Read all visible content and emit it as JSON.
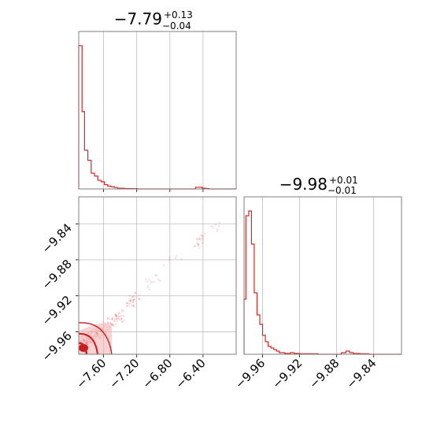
{
  "chart_data": [
    {
      "type": "histogram",
      "panel": "marginal-param-1",
      "title_value": "−7.79",
      "title_plus": "+0.13",
      "title_minus": "−0.04",
      "xlim": [
        -7.9,
        -6.0
      ],
      "x_ticks": [
        -7.6,
        -7.2,
        -6.8,
        -6.4
      ],
      "grid": true,
      "color": "#d62728",
      "bins": [
        {
          "x": -7.9,
          "y": 100
        },
        {
          "x": -7.86,
          "y": 54
        },
        {
          "x": -7.83,
          "y": 27
        },
        {
          "x": -7.79,
          "y": 20
        },
        {
          "x": -7.75,
          "y": 11
        },
        {
          "x": -7.71,
          "y": 9
        },
        {
          "x": -7.67,
          "y": 6
        },
        {
          "x": -7.63,
          "y": 5
        },
        {
          "x": -7.59,
          "y": 3
        },
        {
          "x": -7.55,
          "y": 2
        },
        {
          "x": -7.51,
          "y": 1.5
        },
        {
          "x": -7.47,
          "y": 1
        },
        {
          "x": -7.43,
          "y": 0.5
        },
        {
          "x": -7.39,
          "y": 0.5
        },
        {
          "x": -7.35,
          "y": 0.3
        },
        {
          "x": -7.31,
          "y": 0.3
        },
        {
          "x": -7.27,
          "y": 0.2
        },
        {
          "x": -7.23,
          "y": 0.2
        },
        {
          "x": -7.19,
          "y": 0
        },
        {
          "x": -6.49,
          "y": 1.2
        },
        {
          "x": -6.45,
          "y": 1.2
        },
        {
          "x": -6.41,
          "y": 0.5
        },
        {
          "x": -6.37,
          "y": 0.3
        },
        {
          "x": -6.33,
          "y": 0
        },
        {
          "x": -6.0,
          "y": 0
        }
      ]
    },
    {
      "type": "histogram",
      "panel": "marginal-param-2",
      "title_value": "−9.98",
      "title_plus": "+0.01",
      "title_minus": "−0.01",
      "xlim": [
        -9.98,
        -9.81
      ],
      "x_ticks": [
        -9.96,
        -9.92,
        -9.88,
        -9.84
      ],
      "grid": true,
      "color": "#d62728",
      "bins": [
        {
          "x": -9.98,
          "y": 35
        },
        {
          "x": -9.978,
          "y": 88
        },
        {
          "x": -9.975,
          "y": 91
        },
        {
          "x": -9.972,
          "y": 70
        },
        {
          "x": -9.969,
          "y": 39
        },
        {
          "x": -9.966,
          "y": 25
        },
        {
          "x": -9.963,
          "y": 19
        },
        {
          "x": -9.96,
          "y": 12
        },
        {
          "x": -9.957,
          "y": 8
        },
        {
          "x": -9.954,
          "y": 5
        },
        {
          "x": -9.951,
          "y": 4
        },
        {
          "x": -9.948,
          "y": 3
        },
        {
          "x": -9.945,
          "y": 2
        },
        {
          "x": -9.942,
          "y": 1
        },
        {
          "x": -9.939,
          "y": 1
        },
        {
          "x": -9.936,
          "y": 0.5
        },
        {
          "x": -9.93,
          "y": 1
        },
        {
          "x": -9.926,
          "y": 0.5
        },
        {
          "x": -9.92,
          "y": 0.3
        },
        {
          "x": -9.91,
          "y": 0.3
        },
        {
          "x": -9.9,
          "y": 0
        },
        {
          "x": -9.875,
          "y": 1
        },
        {
          "x": -9.87,
          "y": 2
        },
        {
          "x": -9.866,
          "y": 1
        },
        {
          "x": -9.862,
          "y": 0.5
        },
        {
          "x": -9.855,
          "y": 0.3
        },
        {
          "x": -9.845,
          "y": 0
        },
        {
          "x": -9.81,
          "y": 0
        }
      ]
    },
    {
      "type": "scatter",
      "panel": "joint-param-1-vs-param-2",
      "xlim": [
        -7.9,
        -6.0
      ],
      "ylim": [
        -9.985,
        -9.81
      ],
      "x_ticks": [
        -7.6,
        -7.2,
        -6.8,
        -6.4
      ],
      "y_ticks": [
        -9.84,
        -9.88,
        -9.92,
        -9.96
      ],
      "grid": true,
      "color": "#d62728",
      "contour_levels": 3,
      "clusters": [
        {
          "x": -7.82,
          "y": -9.972,
          "n": 160
        },
        {
          "x": -7.65,
          "y": -9.96,
          "n": 70
        },
        {
          "x": -7.45,
          "y": -9.945,
          "n": 50
        },
        {
          "x": -7.25,
          "y": -9.925,
          "n": 35
        },
        {
          "x": -7.0,
          "y": -9.905,
          "n": 12
        },
        {
          "x": -6.75,
          "y": -9.88,
          "n": 6
        },
        {
          "x": -6.45,
          "y": -9.86,
          "n": 20
        },
        {
          "x": -6.25,
          "y": -9.845,
          "n": 8
        }
      ]
    }
  ]
}
